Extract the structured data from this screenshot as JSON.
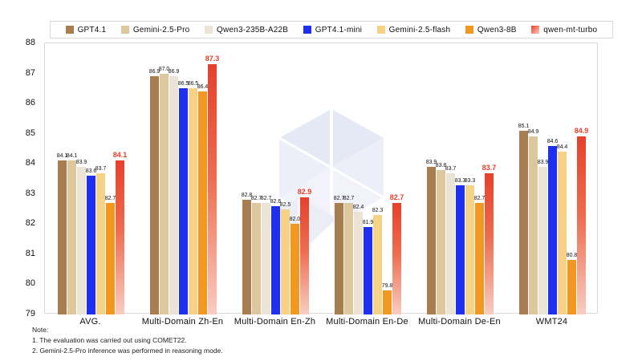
{
  "chart_data": {
    "type": "bar",
    "title": "",
    "categories": [
      "AVG.",
      "Multi-Domain Zh-En",
      "Multi-Domain En-Zh",
      "Multi-Domain En-De",
      "Multi-Domain De-En",
      "WMT24"
    ],
    "series": [
      {
        "name": "GPT4.1",
        "color": "#A87E50",
        "gradient": false,
        "highlight": false,
        "values": [
          84.1,
          86.9,
          82.8,
          82.7,
          83.9,
          85.1
        ]
      },
      {
        "name": "Gemini-2.5-Pro",
        "color": "#DCC89C",
        "gradient": false,
        "highlight": false,
        "values": [
          84.1,
          87.0,
          82.7,
          82.7,
          83.8,
          84.9
        ]
      },
      {
        "name": "Qwen3-235B-A22B",
        "color": "#EBE3D5",
        "gradient": false,
        "highlight": false,
        "values": [
          83.9,
          86.9,
          82.7,
          82.4,
          83.7,
          83.9
        ]
      },
      {
        "name": "GPT4.1-mini",
        "color": "#1E2FF0",
        "gradient": false,
        "highlight": false,
        "values": [
          83.6,
          86.5,
          82.6,
          81.9,
          83.3,
          84.6
        ]
      },
      {
        "name": "Gemini-2.5-flash",
        "color": "#F5D285",
        "gradient": false,
        "highlight": false,
        "values": [
          83.7,
          86.5,
          82.5,
          82.3,
          83.3,
          84.4
        ]
      },
      {
        "name": "Qwen3-8B",
        "color": "#F2971F",
        "gradient": false,
        "highlight": false,
        "values": [
          82.7,
          86.4,
          82.0,
          79.8,
          82.7,
          80.8
        ]
      },
      {
        "name": "qwen-mt-turbo",
        "color": "#E7402A",
        "gradient": true,
        "highlight": true,
        "values": [
          84.1,
          87.3,
          82.9,
          82.7,
          83.7,
          84.9
        ]
      }
    ],
    "ylim": [
      79,
      88
    ],
    "yticks": [
      88,
      87,
      86,
      85,
      84,
      83,
      82,
      81,
      80,
      79
    ],
    "grid": false,
    "legend_position": "top",
    "value_label_color": "#111111",
    "highlight_label_color": "#E7402A",
    "gradient_fade_color": "#F8CDC2"
  },
  "notes": {
    "title": "Note:",
    "items": [
      "1. The evaluation was carried out using COMET22.",
      "2. Gemini-2.5-Pro inference was performed in reasoning mode."
    ]
  }
}
